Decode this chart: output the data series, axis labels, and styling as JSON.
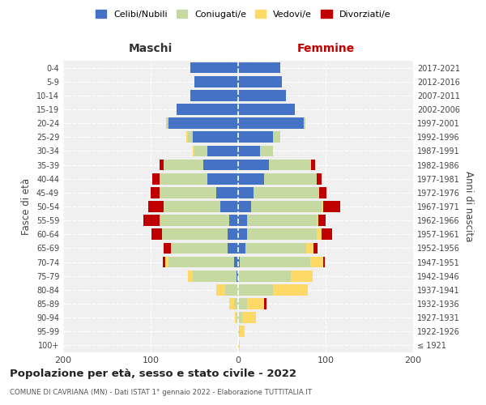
{
  "age_groups": [
    "100+",
    "95-99",
    "90-94",
    "85-89",
    "80-84",
    "75-79",
    "70-74",
    "65-69",
    "60-64",
    "55-59",
    "50-54",
    "45-49",
    "40-44",
    "35-39",
    "30-34",
    "25-29",
    "20-24",
    "15-19",
    "10-14",
    "5-9",
    "0-4"
  ],
  "birth_years": [
    "≤ 1921",
    "1922-1926",
    "1927-1931",
    "1932-1936",
    "1937-1941",
    "1942-1946",
    "1947-1951",
    "1952-1956",
    "1957-1961",
    "1962-1966",
    "1967-1971",
    "1972-1976",
    "1977-1981",
    "1982-1986",
    "1987-1991",
    "1992-1996",
    "1997-2001",
    "2002-2006",
    "2007-2011",
    "2012-2016",
    "2017-2021"
  ],
  "maschi": {
    "celibi": [
      0,
      0,
      0,
      0,
      0,
      2,
      5,
      12,
      12,
      10,
      20,
      25,
      35,
      40,
      35,
      52,
      80,
      70,
      55,
      50,
      55
    ],
    "coniugati": [
      0,
      0,
      2,
      5,
      15,
      50,
      75,
      65,
      75,
      80,
      65,
      65,
      55,
      45,
      15,
      5,
      2,
      0,
      0,
      0,
      0
    ],
    "vedovi": [
      0,
      0,
      2,
      5,
      10,
      5,
      3,
      0,
      0,
      0,
      0,
      0,
      0,
      0,
      2,
      2,
      0,
      0,
      0,
      0,
      0
    ],
    "divorziati": [
      0,
      0,
      0,
      0,
      0,
      0,
      3,
      8,
      12,
      18,
      18,
      10,
      8,
      5,
      0,
      0,
      0,
      0,
      0,
      0,
      0
    ]
  },
  "femmine": {
    "nubili": [
      0,
      0,
      0,
      0,
      0,
      0,
      2,
      8,
      10,
      10,
      15,
      18,
      30,
      35,
      25,
      40,
      75,
      65,
      55,
      50,
      48
    ],
    "coniugate": [
      0,
      2,
      5,
      10,
      40,
      60,
      80,
      70,
      80,
      80,
      80,
      75,
      60,
      48,
      15,
      8,
      2,
      0,
      0,
      0,
      0
    ],
    "vedove": [
      2,
      5,
      15,
      20,
      40,
      25,
      15,
      8,
      5,
      2,
      2,
      0,
      0,
      0,
      0,
      0,
      0,
      0,
      0,
      0,
      0
    ],
    "divorziate": [
      0,
      0,
      0,
      2,
      0,
      0,
      2,
      5,
      12,
      8,
      20,
      8,
      5,
      5,
      0,
      0,
      0,
      0,
      0,
      0,
      0
    ]
  },
  "colors": {
    "celibi_nubili": "#4472c4",
    "coniugati": "#c5d9a0",
    "vedovi": "#ffd966",
    "divorziati": "#c00000"
  },
  "xlim": 200,
  "title": "Popolazione per età, sesso e stato civile - 2022",
  "subtitle": "COMUNE DI CAVRIANA (MN) - Dati ISTAT 1° gennaio 2022 - Elaborazione TUTTITALIA.IT",
  "ylabel_left": "Fasce di età",
  "ylabel_right": "Anni di nascita",
  "xlabel_left": "Maschi",
  "xlabel_right": "Femmine",
  "bg_color": "#ffffff",
  "plot_bg": "#f0f0f0",
  "grid_color": "#cccccc",
  "legend_labels": [
    "Celibi/Nubili",
    "Coniugati/e",
    "Vedovi/e",
    "Divorziati/e"
  ]
}
